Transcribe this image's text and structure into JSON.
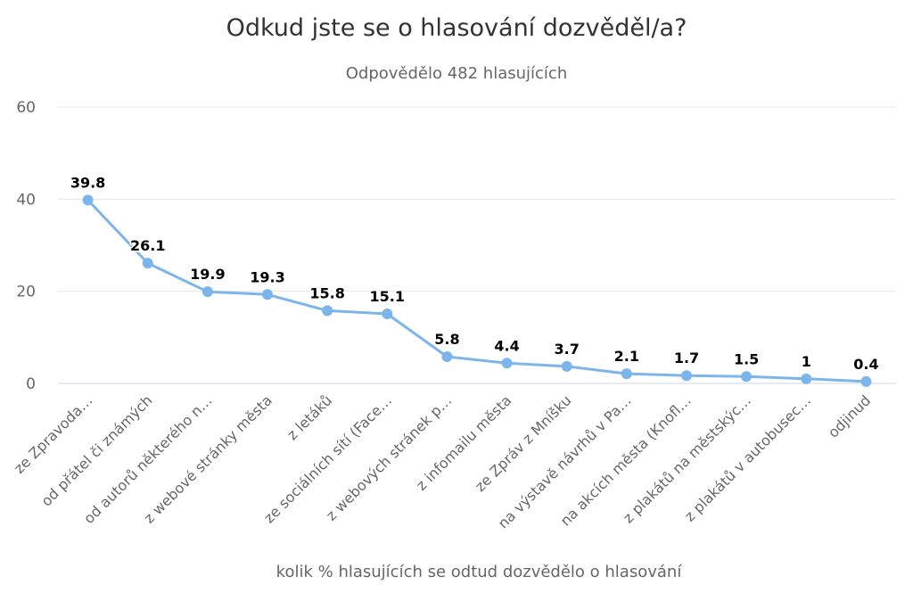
{
  "chart_data": {
    "type": "line",
    "title": "Odkud jste se o hlasování dozvěděl/a?",
    "subtitle": "Odpovědělo 482 hlasujících",
    "xlabel": "kolik % hlasujících se odtud dozvědělo o hlasování",
    "ylabel": "",
    "ylim": [
      0,
      60
    ],
    "yticks": [
      0,
      20,
      40,
      60
    ],
    "grid": true,
    "color": "#7cb5ec",
    "categories": [
      "ze Zpravoda…",
      "od přátel či známých",
      "od autorů některého n…",
      "z webové stránky města",
      "z letáků",
      "ze sociálních sítí (Face…",
      "z webových stránek p…",
      "z infomailu města",
      "ze Zpráv z Mníšku",
      "na výstavě návrhů v Pa…",
      "na akcích města (Knofl…",
      "z plakátů na městskýc…",
      "z plakátů v autobusec…",
      "odjinud"
    ],
    "values": [
      39.8,
      26.1,
      19.9,
      19.3,
      15.8,
      15.1,
      5.8,
      4.4,
      3.7,
      2.1,
      1.7,
      1.5,
      1,
      0.4
    ],
    "data_labels": [
      "39.8",
      "26.1",
      "19.9",
      "19.3",
      "15.8",
      "15.1",
      "5.8",
      "4.4",
      "3.7",
      "2.1",
      "1.7",
      "1.5",
      "1",
      "0.4"
    ]
  }
}
